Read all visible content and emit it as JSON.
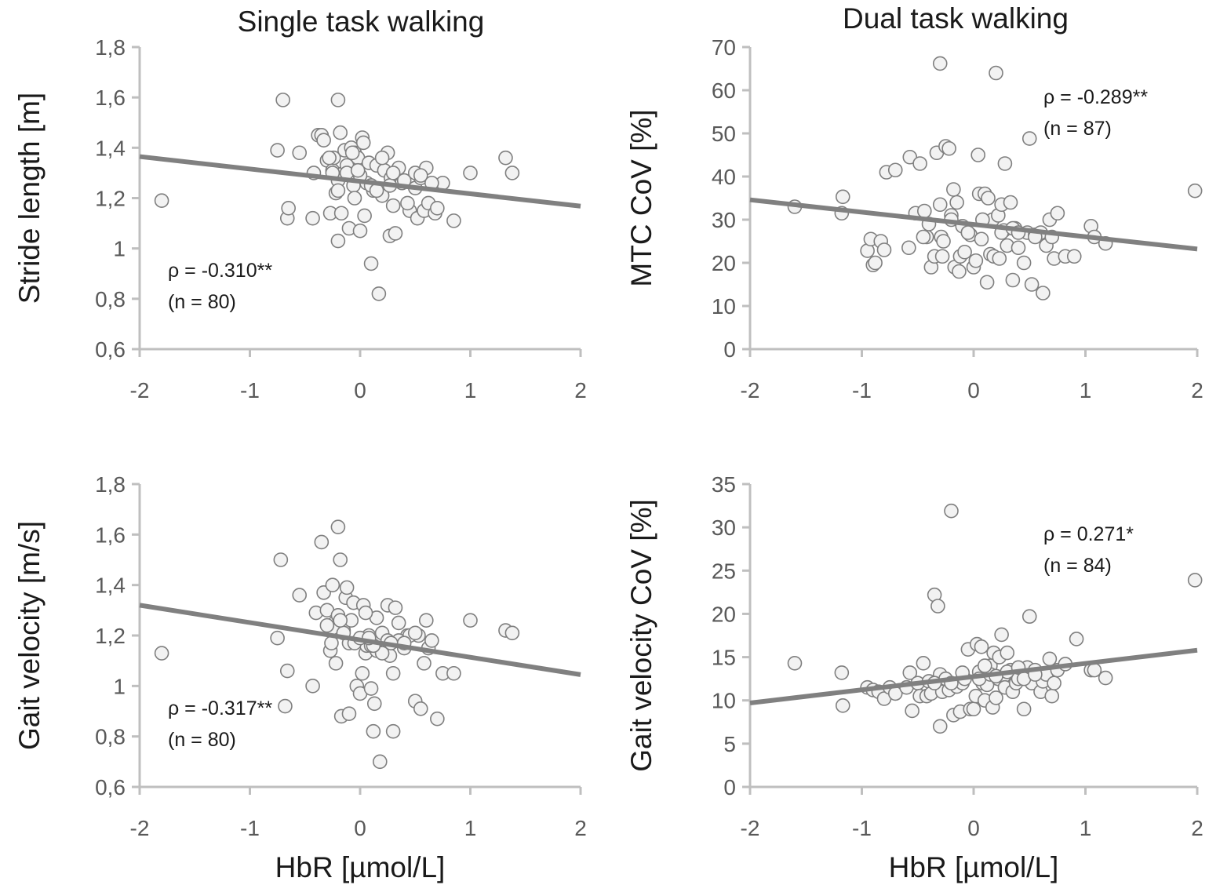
{
  "figure": {
    "column_titles": [
      "Single task walking",
      "Dual task walking"
    ]
  },
  "chart_data": [
    {
      "type": "scatter",
      "panel": "top-left",
      "title": "Single task walking",
      "xlabel": "",
      "ylabel": "Stride length [m]",
      "xlim": [
        -2,
        2
      ],
      "ylim": [
        0.6,
        1.8
      ],
      "x_ticks": [
        -2,
        -1,
        0,
        1,
        2
      ],
      "x_tick_labels": [
        "-2",
        "-1",
        "0",
        "1",
        "2"
      ],
      "y_ticks": [
        0.6,
        0.8,
        1.0,
        1.2,
        1.4,
        1.6,
        1.8
      ],
      "y_tick_labels": [
        "0,6",
        "0,8",
        "1",
        "1,2",
        "1,4",
        "1,6",
        "1,8"
      ],
      "annotation_lines": [
        "ρ = -0.310**",
        "(n = 80)"
      ],
      "annotation_position": "bottom-left",
      "trendline": {
        "x": [
          -2,
          2
        ],
        "y": [
          1.365,
          1.168
        ]
      },
      "x": [
        -1.8,
        -0.75,
        -0.7,
        -0.66,
        -0.65,
        -0.55,
        -0.43,
        -0.42,
        -0.38,
        -0.35,
        -0.33,
        -0.3,
        -0.27,
        -0.25,
        -0.24,
        -0.22,
        -0.2,
        -0.2,
        -0.18,
        -0.17,
        -0.15,
        -0.14,
        -0.12,
        -0.1,
        -0.08,
        -0.06,
        -0.05,
        -0.02,
        0.0,
        0.02,
        0.04,
        0.06,
        0.08,
        0.1,
        0.12,
        0.15,
        0.17,
        0.2,
        0.22,
        0.25,
        0.27,
        0.28,
        0.3,
        0.32,
        0.35,
        0.38,
        0.4,
        0.45,
        0.5,
        0.52,
        0.55,
        0.58,
        0.6,
        0.62,
        0.68,
        0.7,
        0.75,
        0.85,
        1.0,
        1.32,
        1.38,
        -0.2,
        -0.12,
        -0.28,
        -0.05,
        0.0,
        0.2,
        0.27,
        -0.07,
        0.03,
        -0.2,
        -0.02,
        0.1,
        0.3,
        0.43,
        0.5,
        -0.25,
        0.15,
        0.55,
        0.65
      ],
      "y": [
        1.19,
        1.39,
        1.59,
        1.12,
        1.16,
        1.38,
        1.12,
        1.3,
        1.45,
        1.45,
        1.43,
        1.35,
        1.14,
        1.31,
        1.36,
        1.22,
        1.59,
        1.03,
        1.46,
        1.14,
        1.3,
        1.39,
        1.33,
        1.08,
        1.4,
        1.25,
        1.38,
        1.36,
        1.07,
        1.44,
        1.13,
        1.26,
        1.34,
        0.94,
        1.23,
        1.33,
        0.82,
        1.21,
        1.31,
        1.38,
        1.05,
        1.28,
        1.17,
        1.06,
        1.32,
        1.26,
        1.27,
        1.15,
        1.24,
        1.12,
        1.28,
        1.15,
        1.32,
        1.18,
        1.14,
        1.16,
        1.26,
        1.11,
        1.3,
        1.36,
        1.3,
        1.27,
        1.3,
        1.36,
        1.2,
        1.29,
        1.36,
        1.25,
        1.38,
        1.42,
        1.23,
        1.31,
        1.25,
        1.3,
        1.18,
        1.3,
        1.3,
        1.23,
        1.29,
        1.26
      ]
    },
    {
      "type": "scatter",
      "panel": "top-right",
      "title": "Dual task walking",
      "xlabel": "",
      "ylabel": "MTC CoV [%]",
      "xlim": [
        -2,
        2
      ],
      "ylim": [
        0,
        70
      ],
      "x_ticks": [
        -2,
        -1,
        0,
        1,
        2
      ],
      "x_tick_labels": [
        "-2",
        "-1",
        "0",
        "1",
        "2"
      ],
      "y_ticks": [
        0,
        10,
        20,
        30,
        40,
        50,
        60,
        70
      ],
      "y_tick_labels": [
        "0",
        "10",
        "20",
        "30",
        "40",
        "50",
        "60",
        "70"
      ],
      "annotation_lines": [
        "ρ = -0.289**",
        "(n = 87)"
      ],
      "annotation_position": "top-right",
      "trendline": {
        "x": [
          -2,
          2
        ],
        "y": [
          34.6,
          23.2
        ]
      },
      "x": [
        -1.6,
        -1.18,
        -1.17,
        -0.95,
        -0.92,
        -0.9,
        -0.88,
        -0.83,
        -0.8,
        -0.78,
        -0.7,
        -0.58,
        -0.57,
        -0.52,
        -0.48,
        -0.44,
        -0.42,
        -0.4,
        -0.38,
        -0.35,
        -0.33,
        -0.3,
        -0.3,
        -0.29,
        -0.28,
        -0.27,
        -0.25,
        -0.22,
        -0.2,
        -0.18,
        -0.17,
        -0.15,
        -0.13,
        -0.12,
        -0.1,
        -0.08,
        -0.05,
        -0.03,
        0.0,
        0.02,
        0.04,
        0.05,
        0.07,
        0.08,
        0.1,
        0.12,
        0.13,
        0.15,
        0.17,
        0.18,
        0.2,
        0.22,
        0.23,
        0.25,
        0.27,
        0.28,
        0.3,
        0.33,
        0.35,
        0.37,
        0.4,
        0.45,
        0.48,
        0.5,
        0.52,
        0.55,
        0.6,
        0.62,
        0.65,
        0.68,
        0.7,
        0.72,
        0.75,
        0.82,
        0.9,
        1.05,
        1.08,
        1.18,
        1.98,
        -0.2,
        0.08,
        0.25,
        0.35,
        -0.45,
        -0.05,
        0.4,
        0.55
      ],
      "y": [
        33,
        31.5,
        35.3,
        22.8,
        25.5,
        19.5,
        20,
        25,
        23,
        41,
        41.5,
        23.5,
        44.5,
        31.5,
        43,
        32,
        26,
        29,
        19,
        21.5,
        45.5,
        66.2,
        33.5,
        26,
        21.5,
        25,
        47,
        46.5,
        31,
        37,
        19,
        34,
        18,
        21.5,
        28.5,
        22.5,
        27,
        26.5,
        19,
        20.5,
        45,
        36,
        25.5,
        30,
        36,
        15.5,
        35,
        22,
        30,
        21.5,
        64,
        31,
        21,
        33.5,
        27.5,
        43,
        24,
        34,
        16,
        28,
        23.5,
        20,
        27,
        48.8,
        15,
        26.5,
        27,
        13,
        24,
        30,
        26,
        21,
        31.5,
        21.5,
        21.5,
        28.5,
        26,
        24.5,
        36.7,
        30,
        30,
        27,
        28,
        26,
        27,
        27,
        26
      ]
    },
    {
      "type": "scatter",
      "panel": "bottom-left",
      "title": "",
      "xlabel": "HbR [µmol/L]",
      "ylabel": "Gait velocity [m/s]",
      "xlim": [
        -2,
        2
      ],
      "ylim": [
        0.6,
        1.8
      ],
      "x_ticks": [
        -2,
        -1,
        0,
        1,
        2
      ],
      "x_tick_labels": [
        "-2",
        "-1",
        "0",
        "1",
        "2"
      ],
      "y_ticks": [
        0.6,
        0.8,
        1.0,
        1.2,
        1.4,
        1.6,
        1.8
      ],
      "y_tick_labels": [
        "0,6",
        "0,8",
        "1",
        "1,2",
        "1,4",
        "1,6",
        "1,8"
      ],
      "annotation_lines": [
        "ρ = -0.317**",
        "(n = 80)"
      ],
      "annotation_position": "bottom-left",
      "trendline": {
        "x": [
          -2,
          2
        ],
        "y": [
          1.32,
          1.045
        ]
      },
      "x": [
        -1.8,
        -0.75,
        -0.72,
        -0.68,
        -0.66,
        -0.55,
        -0.43,
        -0.4,
        -0.35,
        -0.33,
        -0.3,
        -0.27,
        -0.26,
        -0.25,
        -0.23,
        -0.22,
        -0.2,
        -0.18,
        -0.17,
        -0.15,
        -0.13,
        -0.12,
        -0.1,
        -0.08,
        -0.06,
        -0.03,
        0.0,
        0.02,
        0.03,
        0.05,
        0.06,
        0.08,
        0.1,
        0.12,
        0.13,
        0.15,
        0.18,
        0.2,
        0.22,
        0.25,
        0.27,
        0.3,
        0.3,
        0.32,
        0.35,
        0.4,
        0.43,
        0.5,
        0.53,
        0.55,
        0.58,
        0.6,
        0.62,
        0.7,
        0.75,
        0.85,
        1.0,
        1.32,
        1.38,
        -0.2,
        -0.1,
        0.05,
        0.15,
        0.25,
        -0.25,
        0.1,
        0.45,
        -0.05,
        0.2,
        0.35,
        -0.15,
        0.0,
        0.28,
        -0.3,
        0.12,
        0.5,
        0.65,
        -0.18,
        0.08,
        0.4
      ],
      "y": [
        1.13,
        1.19,
        1.5,
        0.92,
        1.06,
        1.36,
        1.0,
        1.29,
        1.57,
        1.37,
        1.3,
        1.14,
        1.17,
        1.4,
        1.25,
        1.09,
        1.63,
        1.5,
        0.88,
        1.22,
        1.35,
        1.39,
        0.89,
        1.26,
        1.33,
        1.0,
        0.97,
        1.05,
        1.32,
        1.13,
        1.16,
        1.2,
        0.99,
        0.82,
        0.93,
        1.27,
        0.7,
        1.21,
        1.15,
        1.32,
        1.12,
        1.05,
        0.82,
        1.31,
        1.25,
        1.15,
        1.2,
        0.94,
        1.2,
        0.91,
        1.09,
        1.26,
        1.15,
        0.87,
        1.05,
        1.05,
        1.26,
        1.22,
        1.21,
        1.28,
        1.17,
        1.29,
        1.14,
        1.18,
        1.23,
        1.16,
        1.2,
        1.17,
        1.13,
        1.18,
        1.21,
        1.19,
        1.17,
        1.24,
        1.16,
        1.21,
        1.18,
        1.26,
        1.19,
        1.17
      ]
    },
    {
      "type": "scatter",
      "panel": "bottom-right",
      "title": "",
      "xlabel": "HbR [µmol/L]",
      "ylabel": "Gait velocity CoV [%]",
      "xlim": [
        -2,
        2
      ],
      "ylim": [
        0,
        35
      ],
      "x_ticks": [
        -2,
        -1,
        0,
        1,
        2
      ],
      "x_tick_labels": [
        "-2",
        "-1",
        "0",
        "1",
        "2"
      ],
      "y_ticks": [
        0,
        5,
        10,
        15,
        20,
        25,
        30,
        35
      ],
      "y_tick_labels": [
        "0",
        "5",
        "10",
        "15",
        "20",
        "25",
        "30",
        "35"
      ],
      "annotation_lines": [
        "ρ = 0.271*",
        "(n = 84)"
      ],
      "annotation_position": "top-right",
      "trendline": {
        "x": [
          -2,
          2
        ],
        "y": [
          9.7,
          15.8
        ]
      },
      "x": [
        -1.6,
        -1.18,
        -1.17,
        -0.95,
        -0.9,
        -0.85,
        -0.8,
        -0.75,
        -0.7,
        -0.6,
        -0.57,
        -0.55,
        -0.5,
        -0.48,
        -0.45,
        -0.42,
        -0.4,
        -0.38,
        -0.35,
        -0.32,
        -0.3,
        -0.3,
        -0.28,
        -0.25,
        -0.22,
        -0.2,
        -0.18,
        -0.15,
        -0.12,
        -0.1,
        -0.08,
        -0.05,
        -0.03,
        0.0,
        0.02,
        0.03,
        0.05,
        0.07,
        0.08,
        0.1,
        0.12,
        0.15,
        0.17,
        0.18,
        0.2,
        0.22,
        0.23,
        0.25,
        0.27,
        0.28,
        0.3,
        0.33,
        0.35,
        0.38,
        0.4,
        0.45,
        0.48,
        0.5,
        0.52,
        0.55,
        0.6,
        0.62,
        0.65,
        0.68,
        0.7,
        0.72,
        0.75,
        0.82,
        0.92,
        1.05,
        1.08,
        1.18,
        1.98,
        -0.2,
        0.05,
        0.15,
        0.3,
        0.4,
        -0.35,
        0.1,
        0.45,
        -0.1,
        0.2,
        0.55
      ],
      "y": [
        14.3,
        13.2,
        9.4,
        11.5,
        11.2,
        11.0,
        10.2,
        11.5,
        10.8,
        11.5,
        13.2,
        8.8,
        12.0,
        10.5,
        14.3,
        10.5,
        12.2,
        10.8,
        22.2,
        20.9,
        7.0,
        13.0,
        11.0,
        12.5,
        11.2,
        31.9,
        8.3,
        11.6,
        8.7,
        12.0,
        12.5,
        15.9,
        9.0,
        9.0,
        10.5,
        16.5,
        13.3,
        16.2,
        12.0,
        10.0,
        11.8,
        14.0,
        9.2,
        15.5,
        10.3,
        12.5,
        15.0,
        17.6,
        12.8,
        11.5,
        15.5,
        13.5,
        11.0,
        12.0,
        12.5,
        9.0,
        13.8,
        19.7,
        12.0,
        13.5,
        11.0,
        12.2,
        13.0,
        14.8,
        10.5,
        12.0,
        13.5,
        14.2,
        17.1,
        13.5,
        13.5,
        12.6,
        23.9,
        12.0,
        12.5,
        13.0,
        13.3,
        13.8,
        12.0,
        14.0,
        12.5,
        13.2,
        12.8,
        13.0
      ]
    }
  ]
}
